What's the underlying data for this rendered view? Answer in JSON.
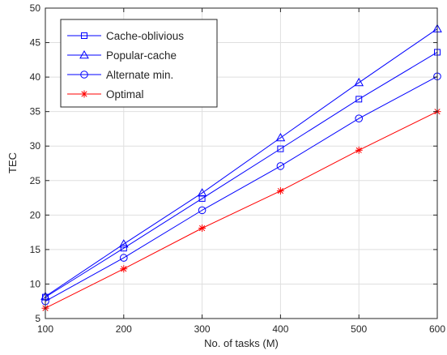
{
  "chart_data": {
    "type": "line",
    "xlabel": "No. of tasks (M)",
    "ylabel": "TEC",
    "xlim": [
      100,
      600
    ],
    "ylim": [
      5,
      50
    ],
    "x_ticks": [
      100,
      200,
      300,
      400,
      500,
      600
    ],
    "y_ticks": [
      5,
      10,
      15,
      20,
      25,
      30,
      35,
      40,
      45,
      50
    ],
    "grid": true,
    "legend_position": "top-left",
    "x": [
      100,
      200,
      300,
      400,
      500,
      600
    ],
    "series": [
      {
        "name": "Cache-oblivious",
        "marker": "square",
        "color": "#0000ff",
        "values": [
          8.1,
          15.2,
          22.4,
          29.6,
          36.8,
          43.6
        ]
      },
      {
        "name": "Popular-cache",
        "marker": "triangle",
        "color": "#0000ff",
        "values": [
          8.2,
          15.8,
          23.2,
          31.2,
          39.2,
          47.0
        ]
      },
      {
        "name": "Alternate min.",
        "marker": "circle",
        "color": "#0000ff",
        "values": [
          7.5,
          13.8,
          20.7,
          27.1,
          34.0,
          40.1
        ]
      },
      {
        "name": "Optimal",
        "marker": "star",
        "color": "#ff0000",
        "values": [
          6.5,
          12.2,
          18.1,
          23.5,
          29.4,
          35.0
        ]
      }
    ]
  }
}
